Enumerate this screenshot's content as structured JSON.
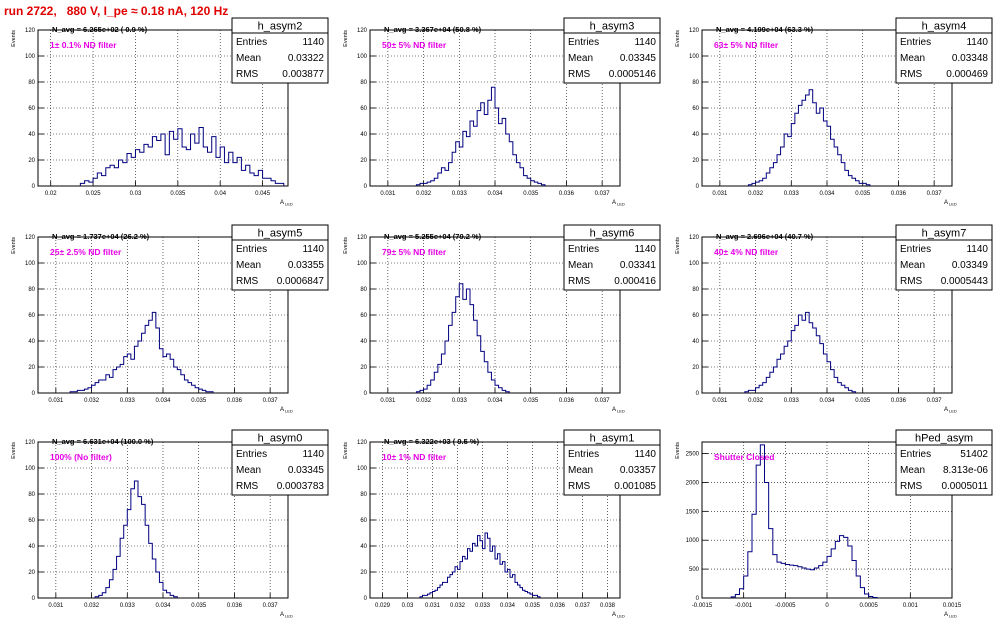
{
  "page_title": "run 2722,   880 V, I_pe ≈ 0.18 nA, 120 Hz",
  "stat_labels": {
    "entries": "Entries",
    "mean": "Mean",
    "rms": "RMS"
  },
  "y_axis_label": "Events",
  "x_axis_label": "A",
  "x_axis_label_sub": "LED",
  "colors": {
    "title": "#e00000",
    "filter_label": "#e600e6",
    "histogram": "#000080",
    "grid": "#000000"
  },
  "chart_data": [
    {
      "type": "histogram",
      "name": "h_asym2",
      "n_avg": "N_avg = 6.265e+02 ( 0.9 %)",
      "filter_label": "1± 0.1% ND filter",
      "entries": "1140",
      "mean": "0.03322",
      "rms": "0.003877",
      "xlim": [
        0.0185,
        0.048
      ],
      "ylim": [
        0,
        120
      ],
      "x_ticks": [
        "0.02",
        "0.025",
        "0.03",
        "0.035",
        "0.04",
        "0.045"
      ],
      "y_ticks": [
        "0",
        "20",
        "40",
        "60",
        "80",
        "100",
        "120"
      ],
      "bins": {
        "start": 0.0235,
        "width": 0.0005,
        "counts": [
          2,
          4,
          3,
          6,
          10,
          8,
          14,
          16,
          14,
          20,
          18,
          25,
          22,
          28,
          26,
          32,
          30,
          38,
          35,
          40,
          24,
          42,
          36,
          44,
          30,
          28,
          40,
          33,
          45,
          30,
          26,
          38,
          22,
          30,
          18,
          26,
          18,
          22,
          12,
          16,
          10,
          8,
          12,
          6,
          6,
          4,
          2,
          2
        ]
      }
    },
    {
      "type": "histogram",
      "name": "h_asym3",
      "n_avg": "N_avg = 3.367e+04 (50.8 %)",
      "filter_label": "50± 5% ND filter",
      "entries": "1140",
      "mean": "0.03345",
      "rms": "0.0005146",
      "xlim": [
        0.0305,
        0.0375
      ],
      "ylim": [
        0,
        120
      ],
      "x_ticks": [
        "0.031",
        "0.032",
        "0.033",
        "0.034",
        "0.035",
        "0.036",
        "0.037"
      ],
      "y_ticks": [
        "0",
        "20",
        "40",
        "60",
        "80",
        "100",
        "120"
      ],
      "bins": {
        "start": 0.0318,
        "width": 0.0001,
        "counts": [
          1,
          2,
          2,
          3,
          4,
          6,
          10,
          14,
          12,
          18,
          26,
          34,
          30,
          42,
          38,
          50,
          46,
          58,
          64,
          55,
          66,
          76,
          60,
          48,
          52,
          40,
          34,
          24,
          18,
          14,
          8,
          6,
          4,
          3,
          2,
          1
        ]
      }
    },
    {
      "type": "histogram",
      "name": "h_asym4",
      "n_avg": "N_avg = 4.199e+04 (63.3 %)",
      "filter_label": "63± 5% ND filter",
      "entries": "1140",
      "mean": "0.03348",
      "rms": "0.000469",
      "xlim": [
        0.0305,
        0.0375
      ],
      "ylim": [
        0,
        120
      ],
      "x_ticks": [
        "0.031",
        "0.032",
        "0.033",
        "0.034",
        "0.035",
        "0.036",
        "0.037"
      ],
      "y_ticks": [
        "0",
        "20",
        "40",
        "60",
        "80",
        "100",
        "120"
      ],
      "bins": {
        "start": 0.0318,
        "width": 0.0001,
        "counts": [
          1,
          2,
          3,
          4,
          6,
          10,
          14,
          18,
          24,
          30,
          40,
          38,
          48,
          56,
          62,
          66,
          70,
          74,
          64,
          56,
          60,
          50,
          46,
          36,
          30,
          24,
          18,
          12,
          8,
          6,
          4,
          2,
          2,
          1
        ]
      }
    },
    {
      "type": "histogram",
      "name": "h_asym5",
      "n_avg": "N_avg = 1.737e+04 (26.2 %)",
      "filter_label": "25± 2.5% ND filter",
      "entries": "1140",
      "mean": "0.03355",
      "rms": "0.0006847",
      "xlim": [
        0.0305,
        0.0375
      ],
      "ylim": [
        0,
        120
      ],
      "x_ticks": [
        "0.031",
        "0.032",
        "0.033",
        "0.034",
        "0.035",
        "0.036",
        "0.037"
      ],
      "y_ticks": [
        "0",
        "20",
        "40",
        "60",
        "80",
        "100",
        "120"
      ],
      "bins": {
        "start": 0.0314,
        "width": 0.0001,
        "counts": [
          1,
          1,
          2,
          2,
          3,
          4,
          6,
          8,
          10,
          10,
          14,
          12,
          18,
          20,
          22,
          28,
          30,
          26,
          36,
          40,
          46,
          52,
          56,
          62,
          50,
          34,
          28,
          30,
          26,
          20,
          18,
          14,
          10,
          8,
          6,
          4,
          3,
          2,
          1,
          1
        ]
      }
    },
    {
      "type": "histogram",
      "name": "h_asym6",
      "n_avg": "N_avg = 5.255e+04 (79.2 %)",
      "filter_label": "79± 5% ND filter",
      "entries": "1140",
      "mean": "0.03341",
      "rms": "0.000416",
      "xlim": [
        0.0305,
        0.0375
      ],
      "ylim": [
        0,
        120
      ],
      "x_ticks": [
        "0.031",
        "0.032",
        "0.033",
        "0.034",
        "0.035",
        "0.036",
        "0.037"
      ],
      "y_ticks": [
        "0",
        "20",
        "40",
        "60",
        "80",
        "100",
        "120"
      ],
      "bins": {
        "start": 0.0318,
        "width": 0.0001,
        "counts": [
          1,
          2,
          3,
          6,
          10,
          16,
          22,
          30,
          40,
          52,
          62,
          74,
          84,
          72,
          80,
          68,
          56,
          44,
          32,
          24,
          16,
          10,
          6,
          4,
          2,
          1
        ]
      }
    },
    {
      "type": "histogram",
      "name": "h_asym7",
      "n_avg": "N_avg = 2.696e+04 (40.7 %)",
      "filter_label": "40± 4% ND filter",
      "entries": "1140",
      "mean": "0.03349",
      "rms": "0.0005443",
      "xlim": [
        0.0305,
        0.0375
      ],
      "ylim": [
        0,
        120
      ],
      "x_ticks": [
        "0.031",
        "0.032",
        "0.033",
        "0.034",
        "0.035",
        "0.036",
        "0.037"
      ],
      "y_ticks": [
        "0",
        "20",
        "40",
        "60",
        "80",
        "100",
        "120"
      ],
      "bins": {
        "start": 0.0317,
        "width": 0.0001,
        "counts": [
          1,
          2,
          2,
          4,
          6,
          8,
          12,
          16,
          20,
          26,
          30,
          36,
          40,
          48,
          52,
          60,
          56,
          62,
          54,
          50,
          44,
          38,
          30,
          24,
          18,
          12,
          8,
          6,
          4,
          2,
          1
        ]
      }
    },
    {
      "type": "histogram",
      "name": "h_asym0",
      "n_avg": "N_avg = 6.631e+04 (100.0 %)",
      "filter_label": "100% (No filter)",
      "entries": "1140",
      "mean": "0.03345",
      "rms": "0.0003783",
      "xlim": [
        0.0305,
        0.0375
      ],
      "ylim": [
        0,
        120
      ],
      "x_ticks": [
        "0.031",
        "0.032",
        "0.033",
        "0.034",
        "0.035",
        "0.036",
        "0.037"
      ],
      "y_ticks": [
        "0",
        "20",
        "40",
        "60",
        "80",
        "100",
        "120"
      ],
      "bins": {
        "start": 0.0321,
        "width": 0.0001,
        "counts": [
          1,
          2,
          4,
          8,
          14,
          22,
          32,
          46,
          56,
          68,
          84,
          90,
          78,
          72,
          56,
          42,
          30,
          20,
          12,
          6,
          4,
          2,
          1
        ]
      }
    },
    {
      "type": "histogram",
      "name": "h_asym1",
      "n_avg": "N_avg = 6.322e+03 ( 9.5 %)",
      "filter_label": "10± 1% ND filter",
      "entries": "1140",
      "mean": "0.03357",
      "rms": "0.001085",
      "xlim": [
        0.0285,
        0.0385
      ],
      "ylim": [
        0,
        120
      ],
      "x_ticks": [
        "0.029",
        "0.03",
        "0.031",
        "0.032",
        "0.033",
        "0.034",
        "0.035",
        "0.036",
        "0.037",
        "0.038"
      ],
      "y_ticks": [
        "0",
        "20",
        "40",
        "60",
        "80",
        "100",
        "120"
      ],
      "bins": {
        "start": 0.0305,
        "width": 0.0001,
        "counts": [
          1,
          2,
          2,
          3,
          4,
          5,
          6,
          8,
          10,
          12,
          12,
          16,
          18,
          20,
          24,
          22,
          28,
          32,
          30,
          38,
          36,
          42,
          40,
          48,
          44,
          38,
          50,
          46,
          36,
          40,
          30,
          34,
          26,
          28,
          20,
          22,
          16,
          18,
          12,
          10,
          8,
          6,
          5,
          4,
          3,
          2,
          2,
          1
        ]
      }
    },
    {
      "type": "histogram",
      "name": "hPed_asym",
      "n_avg": "",
      "filter_label": "Shutter Closed",
      "entries": "51402",
      "mean": "8.313e-06",
      "rms": "0.0005011",
      "xlim": [
        -0.0015,
        0.0015
      ],
      "ylim": [
        0,
        2700
      ],
      "x_ticks": [
        "-0.0015",
        "-0.001",
        "-0.0005",
        "0",
        "0.0005",
        "0.001",
        "0.0015"
      ],
      "y_ticks": [
        "0",
        "500",
        "1000",
        "1500",
        "2000",
        "2500"
      ],
      "bins": {
        "start": -0.00115,
        "width": 5e-05,
        "counts": [
          20,
          60,
          160,
          380,
          800,
          1450,
          2300,
          2650,
          2000,
          1200,
          750,
          620,
          600,
          580,
          570,
          560,
          540,
          520,
          500,
          490,
          520,
          560,
          620,
          720,
          850,
          980,
          1080,
          1050,
          900,
          650,
          380,
          180,
          70,
          25,
          8
        ]
      }
    }
  ]
}
